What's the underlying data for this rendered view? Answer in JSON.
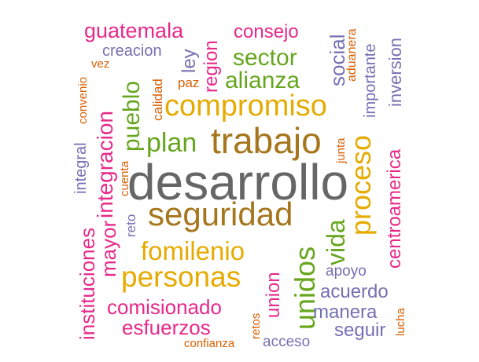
{
  "palette": {
    "teal": "#1b9e77",
    "orange": "#d95f02",
    "purple": "#7570b3",
    "magenta": "#e7298a",
    "green": "#66a61e",
    "gold": "#e6ab02",
    "brown": "#a6761d",
    "gray": "#666666"
  },
  "words": [
    {
      "text": "desarrollo",
      "color": "gray"
    },
    {
      "text": "trabajo",
      "color": "brown"
    },
    {
      "text": "seguridad",
      "color": "brown"
    },
    {
      "text": "compromiso",
      "color": "gold"
    },
    {
      "text": "personas",
      "color": "gold"
    },
    {
      "text": "fomilenio",
      "color": "gold"
    },
    {
      "text": "proceso",
      "color": "gold"
    },
    {
      "text": "unidos",
      "color": "green"
    },
    {
      "text": "alianza",
      "color": "green"
    },
    {
      "text": "sector",
      "color": "green"
    },
    {
      "text": "plan",
      "color": "green"
    },
    {
      "text": "pueblo",
      "color": "green"
    },
    {
      "text": "vida",
      "color": "green"
    },
    {
      "text": "integracion",
      "color": "magenta"
    },
    {
      "text": "guatemala",
      "color": "magenta"
    },
    {
      "text": "consejo",
      "color": "magenta"
    },
    {
      "text": "region",
      "color": "magenta"
    },
    {
      "text": "mayor",
      "color": "magenta"
    },
    {
      "text": "instituciones",
      "color": "magenta"
    },
    {
      "text": "comisionado",
      "color": "magenta"
    },
    {
      "text": "esfuerzos",
      "color": "magenta"
    },
    {
      "text": "centroamerica",
      "color": "magenta"
    },
    {
      "text": "union",
      "color": "magenta"
    },
    {
      "text": "social",
      "color": "purple"
    },
    {
      "text": "acuerdo",
      "color": "purple"
    },
    {
      "text": "manera",
      "color": "purple"
    },
    {
      "text": "seguir",
      "color": "purple"
    },
    {
      "text": "apoyo",
      "color": "purple"
    },
    {
      "text": "acceso",
      "color": "purple"
    },
    {
      "text": "importante",
      "color": "purple"
    },
    {
      "text": "inversion",
      "color": "purple"
    },
    {
      "text": "creacion",
      "color": "purple"
    },
    {
      "text": "ley",
      "color": "purple"
    },
    {
      "text": "integral",
      "color": "purple"
    },
    {
      "text": "reto",
      "color": "purple"
    },
    {
      "text": "calidad",
      "color": "orange"
    },
    {
      "text": "paz",
      "color": "orange"
    },
    {
      "text": "vez",
      "color": "orange"
    },
    {
      "text": "convenio",
      "color": "orange"
    },
    {
      "text": "aduanera",
      "color": "orange"
    },
    {
      "text": "junta",
      "color": "orange"
    },
    {
      "text": "cuenta",
      "color": "orange"
    },
    {
      "text": "retos",
      "color": "orange"
    },
    {
      "text": "lucha",
      "color": "orange"
    },
    {
      "text": "confianza",
      "color": "orange"
    }
  ]
}
